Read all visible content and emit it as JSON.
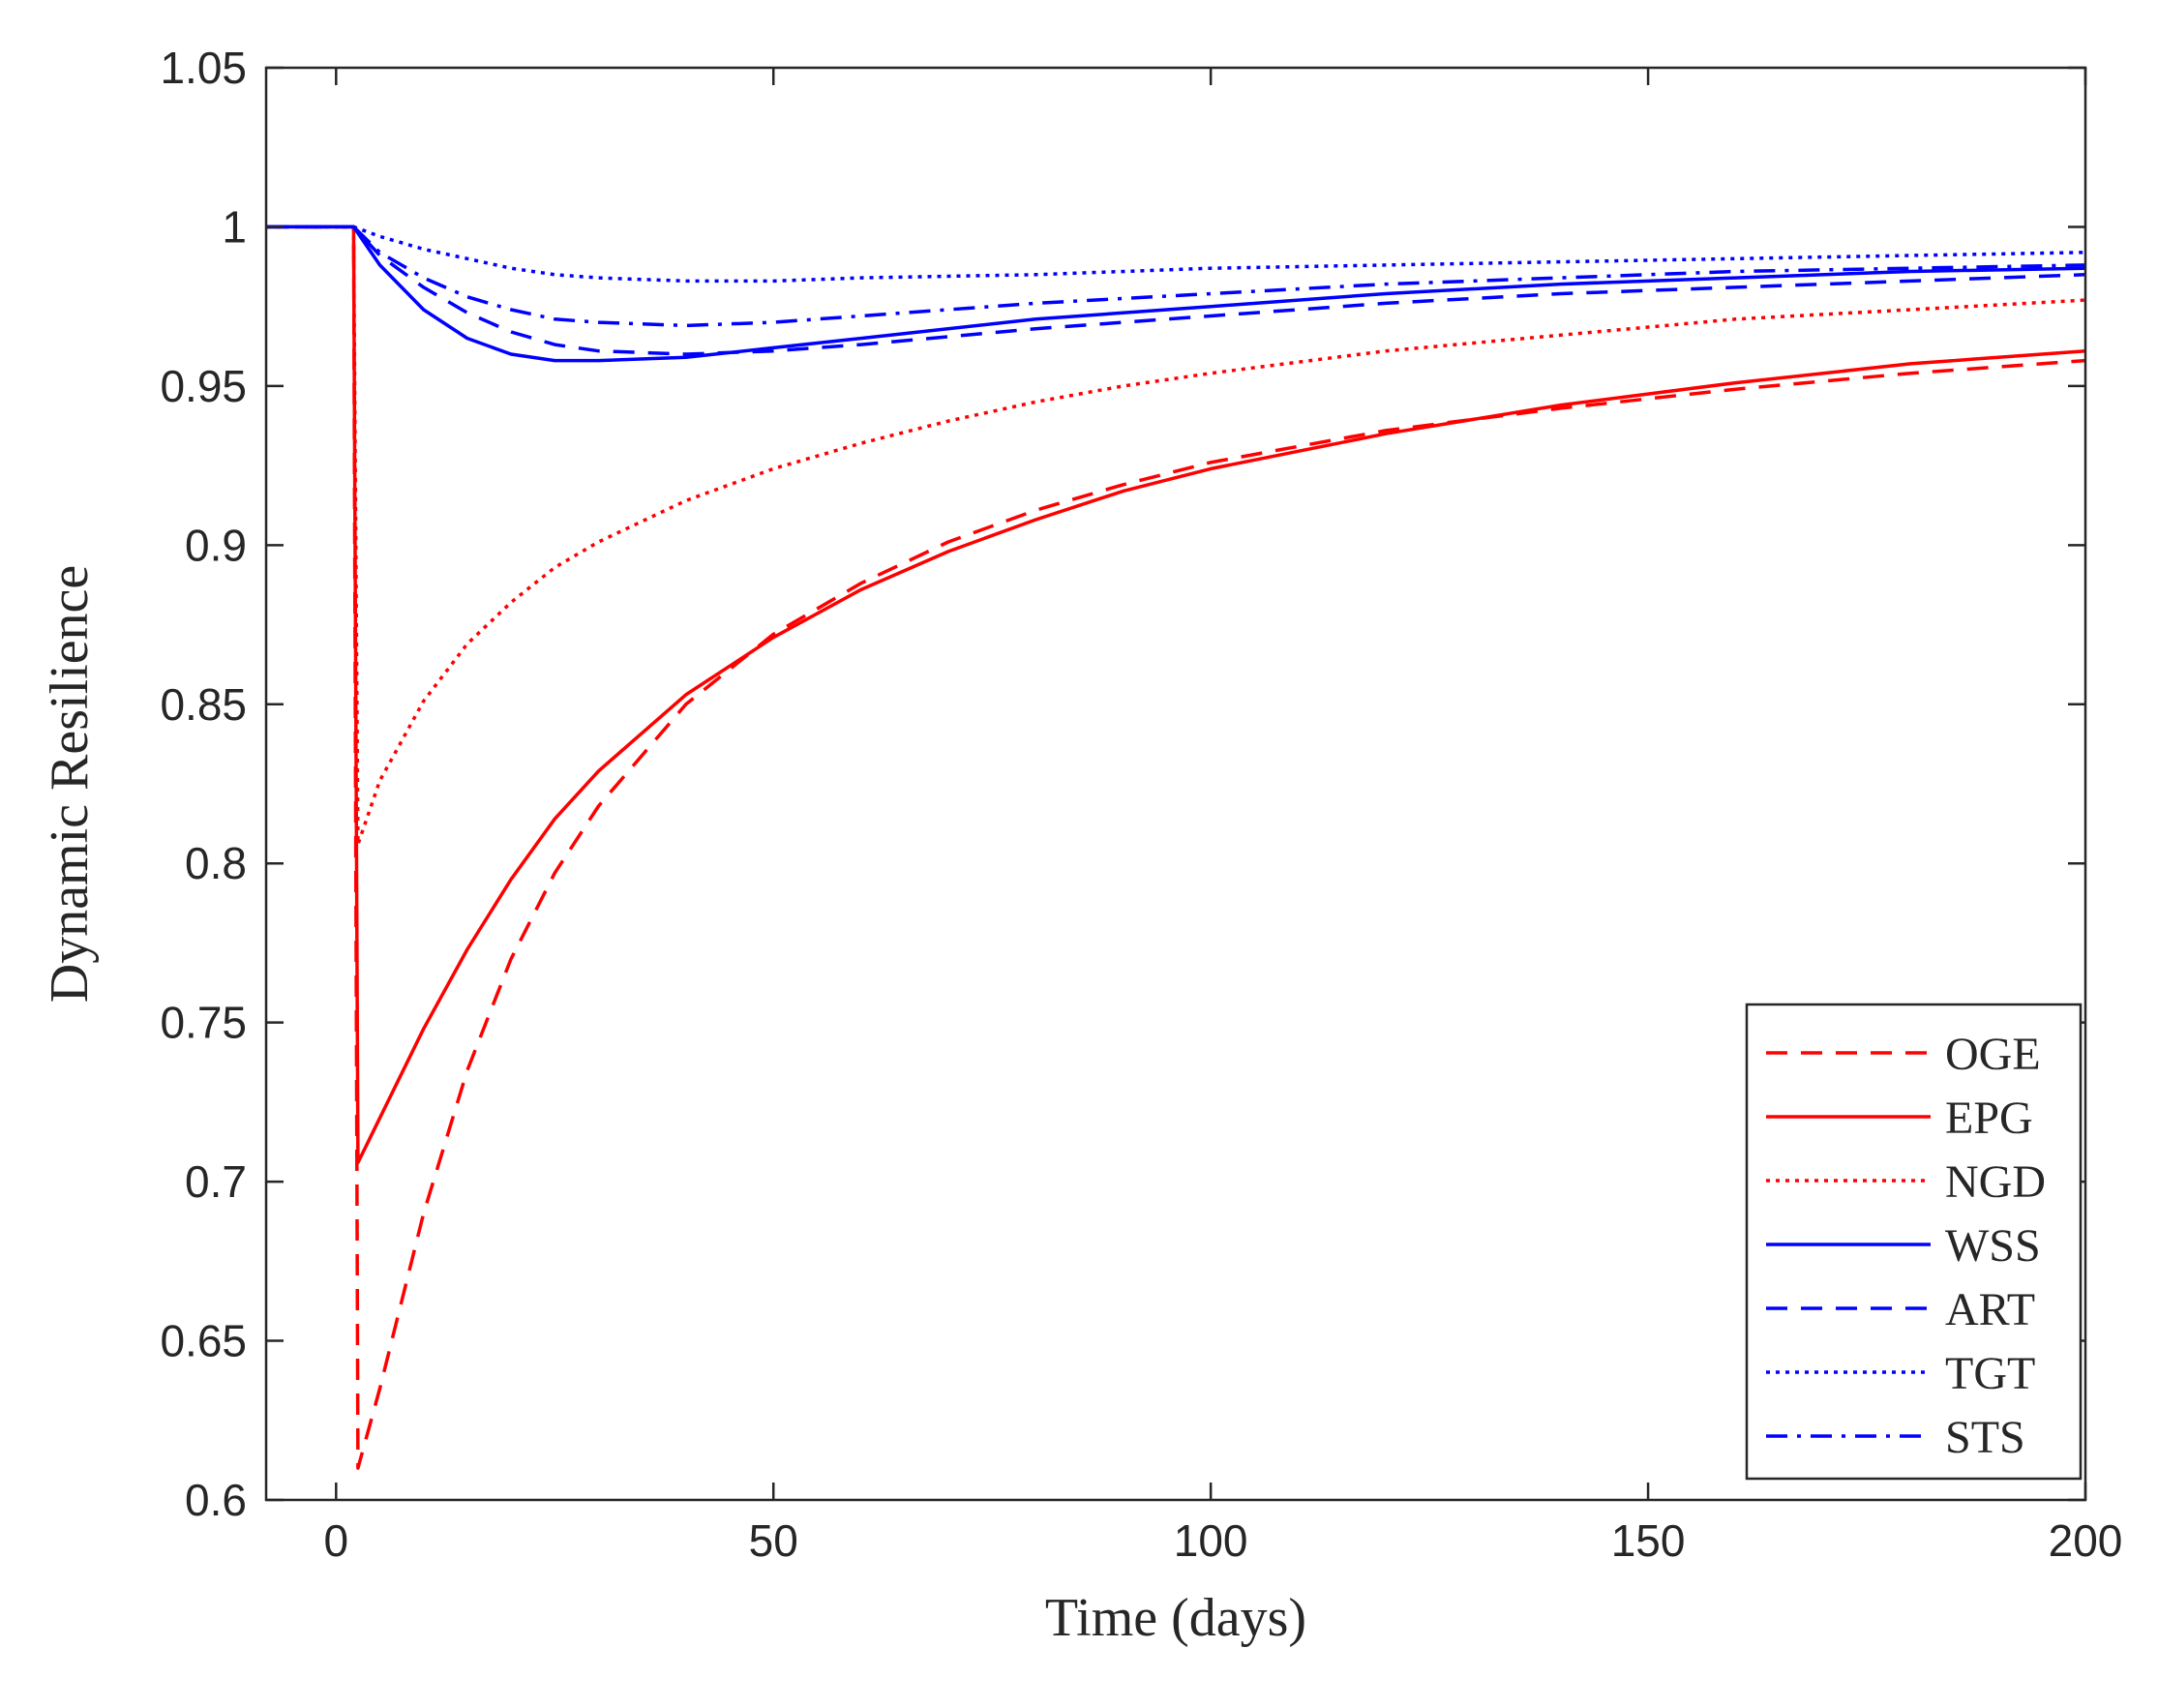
{
  "chart_data": {
    "type": "line",
    "title": "",
    "xlabel": "Time (days)",
    "ylabel": "Dynamic Resilience",
    "xlim": [
      -8,
      200
    ],
    "ylim": [
      0.6,
      1.05
    ],
    "xticks": [
      0,
      50,
      100,
      150,
      200
    ],
    "xtick_labels": [
      "0",
      "50",
      "100",
      "150",
      "200"
    ],
    "yticks": [
      0.6,
      0.65,
      0.7,
      0.75,
      0.8,
      0.85,
      0.9,
      0.95,
      1.0,
      1.05
    ],
    "ytick_labels": [
      "0.6",
      "0.65",
      "0.7",
      "0.75",
      "0.8",
      "0.85",
      "0.9",
      "0.95",
      "1",
      "1.05"
    ],
    "grid": false,
    "legend_position": "bottom-right",
    "series": [
      {
        "name": "OGE",
        "color": "#ff0000",
        "style": "dashed",
        "x": [
          -8,
          1,
          2,
          2.5,
          5,
          10,
          15,
          20,
          25,
          30,
          40,
          50,
          60,
          70,
          80,
          90,
          100,
          120,
          140,
          160,
          180,
          200
        ],
        "y": [
          1,
          1,
          1,
          0.61,
          0.635,
          0.69,
          0.735,
          0.77,
          0.797,
          0.818,
          0.85,
          0.872,
          0.888,
          0.901,
          0.911,
          0.919,
          0.926,
          0.936,
          0.943,
          0.949,
          0.954,
          0.958
        ]
      },
      {
        "name": "EPG",
        "color": "#ff0000",
        "style": "solid",
        "x": [
          -8,
          1,
          2,
          2.5,
          5,
          10,
          15,
          20,
          25,
          30,
          40,
          50,
          60,
          70,
          80,
          90,
          100,
          120,
          140,
          160,
          180,
          200
        ],
        "y": [
          1,
          1,
          1,
          0.706,
          0.72,
          0.748,
          0.773,
          0.795,
          0.814,
          0.829,
          0.853,
          0.871,
          0.886,
          0.898,
          0.908,
          0.917,
          0.924,
          0.935,
          0.944,
          0.951,
          0.957,
          0.961
        ]
      },
      {
        "name": "NGD",
        "color": "#ff0000",
        "style": "dotted",
        "x": [
          -8,
          1,
          2,
          2.5,
          5,
          10,
          15,
          20,
          25,
          30,
          40,
          50,
          60,
          70,
          80,
          90,
          100,
          120,
          140,
          160,
          180,
          200
        ],
        "y": [
          1,
          1,
          1,
          0.806,
          0.826,
          0.851,
          0.869,
          0.882,
          0.893,
          0.901,
          0.914,
          0.924,
          0.932,
          0.939,
          0.945,
          0.95,
          0.954,
          0.961,
          0.966,
          0.971,
          0.974,
          0.977
        ]
      },
      {
        "name": "WSS",
        "color": "#0000ff",
        "style": "solid",
        "x": [
          -8,
          1,
          2,
          5,
          10,
          15,
          20,
          25,
          30,
          40,
          50,
          60,
          80,
          100,
          120,
          140,
          160,
          180,
          200
        ],
        "y": [
          1,
          1,
          1,
          0.988,
          0.974,
          0.965,
          0.96,
          0.958,
          0.958,
          0.959,
          0.962,
          0.965,
          0.971,
          0.975,
          0.979,
          0.982,
          0.984,
          0.986,
          0.987
        ]
      },
      {
        "name": "ART",
        "color": "#0000ff",
        "style": "dashed",
        "x": [
          -8,
          1,
          2,
          5,
          10,
          15,
          20,
          25,
          30,
          40,
          50,
          60,
          80,
          100,
          120,
          140,
          160,
          180,
          200
        ],
        "y": [
          1,
          1,
          1,
          0.991,
          0.981,
          0.973,
          0.967,
          0.963,
          0.961,
          0.96,
          0.961,
          0.963,
          0.968,
          0.972,
          0.976,
          0.979,
          0.981,
          0.983,
          0.985
        ]
      },
      {
        "name": "TGT",
        "color": "#0000ff",
        "style": "dotted",
        "x": [
          -8,
          1,
          2,
          5,
          10,
          15,
          20,
          25,
          30,
          40,
          50,
          60,
          80,
          100,
          120,
          140,
          160,
          180,
          200
        ],
        "y": [
          1,
          1,
          1,
          0.997,
          0.993,
          0.99,
          0.987,
          0.985,
          0.984,
          0.983,
          0.983,
          0.984,
          0.985,
          0.987,
          0.988,
          0.989,
          0.99,
          0.991,
          0.992
        ]
      },
      {
        "name": "STS",
        "color": "#0000ff",
        "style": "dashdot",
        "x": [
          -8,
          1,
          2,
          5,
          10,
          15,
          20,
          25,
          30,
          40,
          50,
          60,
          80,
          100,
          120,
          140,
          160,
          180,
          200
        ],
        "y": [
          1,
          1,
          1,
          0.992,
          0.984,
          0.978,
          0.974,
          0.971,
          0.97,
          0.969,
          0.97,
          0.972,
          0.976,
          0.979,
          0.982,
          0.984,
          0.986,
          0.987,
          0.988
        ]
      }
    ]
  }
}
